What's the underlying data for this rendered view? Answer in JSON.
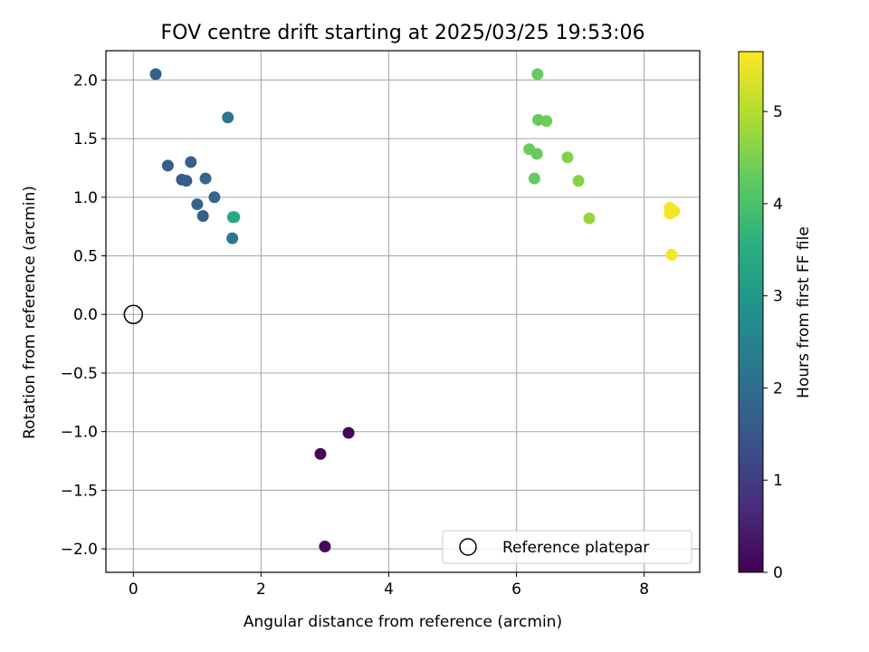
{
  "chart_data": {
    "type": "scatter",
    "title": "FOV centre drift starting at 2025/03/25 19:53:06",
    "xlabel": "Angular distance from reference (arcmin)",
    "ylabel": "Rotation from reference (arcmin)",
    "xlim": [
      -0.43,
      8.87
    ],
    "ylim": [
      -2.2,
      2.25
    ],
    "xticks": [
      0,
      2,
      4,
      6,
      8
    ],
    "xtick_labels": [
      "0",
      "2",
      "4",
      "6",
      "8"
    ],
    "yticks": [
      2.0,
      1.5,
      1.0,
      0.5,
      0.0,
      -0.5,
      -1.0,
      -1.5,
      -2.0
    ],
    "ytick_labels": [
      "2.0",
      "1.5",
      "1.0",
      "0.5",
      "0.0",
      "−0.5",
      "−1.0",
      "−1.5",
      "−2.0"
    ],
    "grid": true,
    "legend": {
      "position": "bottom-right",
      "entries": [
        "Reference platepar"
      ]
    },
    "reference_point": {
      "x": 0,
      "y": 0,
      "marker": "open-circle"
    },
    "colorbar": {
      "label": "Hours from first FF file",
      "range": [
        0,
        5.65
      ],
      "ticks": [
        0,
        1,
        2,
        3,
        4,
        5
      ],
      "tick_labels": [
        "0",
        "1",
        "2",
        "3",
        "4",
        "5"
      ],
      "colormap": "viridis"
    },
    "points": [
      {
        "x": 3.37,
        "y": -1.01,
        "t": 0.05
      },
      {
        "x": 2.93,
        "y": -1.19,
        "t": 0.1
      },
      {
        "x": 3.0,
        "y": -1.98,
        "t": 0.15
      },
      {
        "x": 0.35,
        "y": 2.05,
        "t": 1.75
      },
      {
        "x": 0.54,
        "y": 1.27,
        "t": 1.65
      },
      {
        "x": 0.76,
        "y": 1.15,
        "t": 1.6
      },
      {
        "x": 0.83,
        "y": 1.14,
        "t": 1.65
      },
      {
        "x": 0.9,
        "y": 1.3,
        "t": 1.7
      },
      {
        "x": 1.0,
        "y": 0.94,
        "t": 1.8
      },
      {
        "x": 1.09,
        "y": 0.84,
        "t": 1.75
      },
      {
        "x": 1.13,
        "y": 1.16,
        "t": 1.85
      },
      {
        "x": 1.27,
        "y": 1.0,
        "t": 1.9
      },
      {
        "x": 1.48,
        "y": 1.68,
        "t": 2.2
      },
      {
        "x": 1.55,
        "y": 0.65,
        "t": 2.25
      },
      {
        "x": 1.56,
        "y": 0.83,
        "t": 3.25
      },
      {
        "x": 1.58,
        "y": 0.83,
        "t": 3.4
      },
      {
        "x": 6.33,
        "y": 2.05,
        "t": 4.3
      },
      {
        "x": 6.34,
        "y": 1.66,
        "t": 4.3
      },
      {
        "x": 6.47,
        "y": 1.65,
        "t": 4.35
      },
      {
        "x": 6.2,
        "y": 1.41,
        "t": 4.35
      },
      {
        "x": 6.32,
        "y": 1.37,
        "t": 4.3
      },
      {
        "x": 6.28,
        "y": 1.16,
        "t": 4.3
      },
      {
        "x": 6.8,
        "y": 1.34,
        "t": 4.55
      },
      {
        "x": 6.97,
        "y": 1.14,
        "t": 4.6
      },
      {
        "x": 7.14,
        "y": 0.82,
        "t": 4.75
      },
      {
        "x": 8.4,
        "y": 0.91,
        "t": 5.6
      },
      {
        "x": 8.4,
        "y": 0.86,
        "t": 5.6
      },
      {
        "x": 8.47,
        "y": 0.88,
        "t": 5.55
      },
      {
        "x": 8.43,
        "y": 0.51,
        "t": 5.6
      }
    ]
  }
}
